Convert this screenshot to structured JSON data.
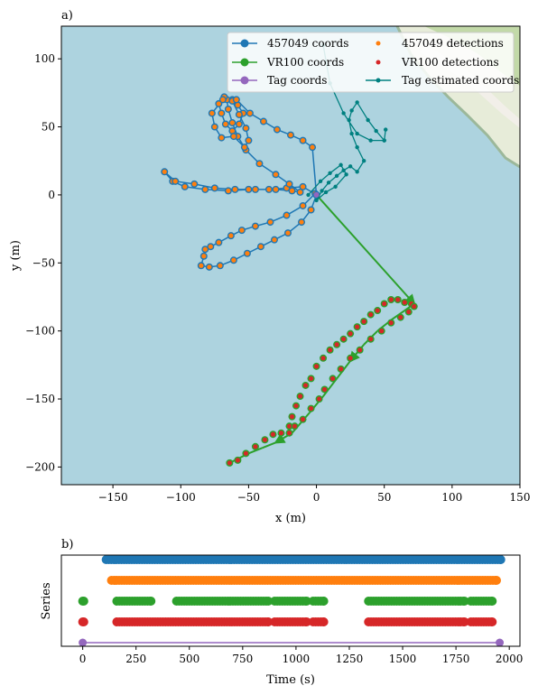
{
  "chart_data": [
    {
      "panel_label": "a)",
      "type": "line",
      "xlabel": "x (m)",
      "ylabel": "y (m)",
      "xlim": [
        -188,
        150
      ],
      "ylim": [
        -213,
        124
      ],
      "xticks": [
        -150,
        -100,
        -50,
        0,
        50,
        100,
        150
      ],
      "yticks": [
        100,
        50,
        0,
        -50,
        -100,
        -150,
        -200
      ],
      "xtick_labels": [
        "−150",
        "−100",
        "−50",
        "0",
        "50",
        "100",
        "150"
      ],
      "ytick_labels": [
        "100",
        "50",
        "0",
        "−50",
        "−100",
        "−150",
        "−200"
      ],
      "background": "#add3df",
      "legend": {
        "position": "top-right",
        "columns": 2,
        "entries": [
          {
            "label": "457049 coords",
            "color": "#1f77b4",
            "marker": "circle-line"
          },
          {
            "label": "457049 detections",
            "color": "#ff7f0e",
            "marker": "dot"
          },
          {
            "label": "VR100 coords",
            "color": "#2ca02c",
            "marker": "circle-line"
          },
          {
            "label": "VR100 detections",
            "color": "#d62728",
            "marker": "dot"
          },
          {
            "label": "Tag coords",
            "color": "#9467bd",
            "marker": "circle-line"
          },
          {
            "label": "Tag estimated coords",
            "color": "#008080",
            "marker": "small-line"
          }
        ]
      },
      "series": [
        {
          "name": "457049 coords",
          "color": "#1f77b4",
          "x": [
            0,
            -10,
            -22,
            -35,
            -50,
            -65,
            -82,
            -97,
            -106,
            -112,
            -104,
            -90,
            -75,
            -60,
            -45,
            -30,
            -18,
            -12,
            -20,
            -30,
            -42,
            -52,
            -58,
            -62,
            -65,
            -66,
            -62,
            -58,
            -54,
            -57,
            -62,
            -67,
            -70,
            -72,
            -68,
            -62,
            -57,
            -52,
            -50,
            -53,
            -61,
            -70,
            -75,
            -77,
            -69,
            -59,
            -49,
            -39,
            -29,
            -19,
            -10,
            -3,
            0
          ],
          "y": [
            0,
            6,
            5,
            4,
            4,
            3,
            4,
            6,
            10,
            17,
            10,
            8,
            5,
            4,
            4,
            4,
            3,
            2,
            8,
            15,
            23,
            33,
            43,
            53,
            63,
            70,
            70,
            66,
            60,
            52,
            47,
            52,
            60,
            67,
            72,
            69,
            59,
            49,
            40,
            35,
            43,
            42,
            50,
            60,
            70,
            70,
            60,
            54,
            48,
            44,
            40,
            35,
            0
          ]
        },
        {
          "name": "457049 coords return",
          "color": "#1f77b4",
          "x": [
            -1,
            -10,
            -22,
            -34,
            -45,
            -55,
            -63,
            -72,
            -78,
            -82,
            -83,
            -85,
            -79,
            -71,
            -61,
            -51,
            -41,
            -31,
            -21,
            -11,
            -4,
            0
          ],
          "y": [
            1,
            -8,
            -15,
            -20,
            -23,
            -26,
            -30,
            -35,
            -38,
            -40,
            -45,
            -52,
            -53,
            -52,
            -48,
            -43,
            -38,
            -33,
            -28,
            -20,
            -11,
            0
          ]
        },
        {
          "name": "VR100 coords",
          "color": "#2ca02c",
          "x": [
            0,
            72,
            65,
            55,
            45,
            35,
            25,
            15,
            5,
            -5,
            -18,
            -30,
            -40,
            -50,
            -58,
            -64
          ],
          "y": [
            0,
            -80,
            -85,
            -92,
            -100,
            -110,
            -122,
            -135,
            -148,
            -160,
            -175,
            -182,
            -186,
            -190,
            -194,
            -197
          ]
        },
        {
          "name": "Tag coords",
          "color": "#9467bd",
          "x": [
            0
          ],
          "y": [
            0
          ]
        },
        {
          "name": "Tag estimated coords",
          "color": "#008080",
          "x": [
            -6,
            3,
            10,
            18,
            22,
            14,
            7,
            0,
            4,
            9,
            15,
            20,
            25,
            30,
            35,
            30,
            26,
            24,
            26,
            30,
            38,
            44,
            50,
            51,
            50,
            40,
            30,
            20,
            10,
            5
          ],
          "y": [
            0,
            10,
            16,
            22,
            15,
            6,
            2,
            -4,
            3,
            9,
            14,
            18,
            21,
            17,
            25,
            35,
            45,
            55,
            62,
            68,
            55,
            47,
            40,
            48,
            40,
            40,
            45,
            60,
            82,
            110
          ]
        },
        {
          "name": "VR100 detections path",
          "color": "#d62728",
          "x": [
            -64,
            -58,
            -52,
            -45,
            -38,
            -32,
            -26,
            -20,
            -18,
            -15,
            -12,
            -8,
            -4,
            0,
            5,
            10,
            15,
            20,
            25,
            30,
            35,
            40,
            45,
            50,
            55,
            60,
            65,
            70,
            72,
            68,
            62,
            55,
            48,
            40,
            32,
            25,
            18,
            12,
            6,
            2,
            -4,
            -10,
            -16,
            -20
          ],
          "y": [
            -197,
            -195,
            -190,
            -185,
            -180,
            -176,
            -175,
            -170,
            -163,
            -155,
            -148,
            -140,
            -135,
            -126,
            -120,
            -114,
            -110,
            -106,
            -102,
            -97,
            -93,
            -88,
            -85,
            -80,
            -77,
            -77,
            -79,
            -80,
            -82,
            -86,
            -90,
            -94,
            -100,
            -106,
            -114,
            -120,
            -128,
            -135,
            -143,
            -150,
            -157,
            -165,
            -170,
            -175
          ]
        }
      ]
    },
    {
      "panel_label": "b)",
      "type": "scatter",
      "xlabel": "Time (s)",
      "ylabel": "Series",
      "xlim": [
        -100,
        2050
      ],
      "xticks": [
        0,
        250,
        500,
        750,
        1000,
        1250,
        1500,
        1750,
        2000
      ],
      "series": [
        {
          "name": "457049 coords",
          "color": "#1f77b4",
          "ranges": [
            [
              110,
              1960
            ]
          ]
        },
        {
          "name": "457049 detections",
          "color": "#ff7f0e",
          "ranges": [
            [
              135,
              1940
            ]
          ]
        },
        {
          "name": "VR100 coords",
          "color": "#2ca02c",
          "ranges": [
            [
              0,
              5
            ],
            [
              160,
              320
            ],
            [
              440,
              870
            ],
            [
              900,
              1050
            ],
            [
              1080,
              1130
            ],
            [
              1340,
              1790
            ],
            [
              1820,
              1920
            ]
          ]
        },
        {
          "name": "VR100 detections",
          "color": "#d62728",
          "ranges": [
            [
              0,
              5
            ],
            [
              160,
              870
            ],
            [
              900,
              1050
            ],
            [
              1080,
              1130
            ],
            [
              1340,
              1790
            ],
            [
              1820,
              1920
            ]
          ]
        },
        {
          "name": "Tag coords",
          "color": "#9467bd",
          "line": [
            0,
            1955
          ]
        }
      ]
    }
  ]
}
